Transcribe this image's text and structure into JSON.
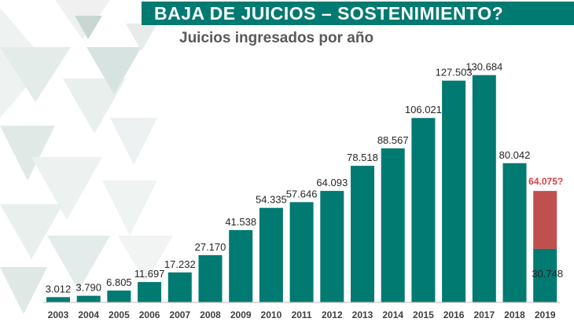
{
  "slide_title": "BAJA DE JUICIOS – SOSTENIMIENTO?",
  "colors": {
    "bar": "#017a72",
    "highlight": "#c0504d",
    "title_bar": "#017a72",
    "question_label": "#e03a3a"
  },
  "chart_data": {
    "type": "bar",
    "title": "Juicios ingresados por año",
    "xlabel": "",
    "ylabel": "",
    "grid": false,
    "legend": "none",
    "categories": [
      "2003",
      "2004",
      "2005",
      "2006",
      "2007",
      "2008",
      "2009",
      "2010",
      "2011",
      "2012",
      "2013",
      "2014",
      "2015",
      "2016",
      "2017",
      "2018",
      "2019"
    ],
    "values": [
      3012,
      3790,
      6805,
      11697,
      17232,
      27170,
      41538,
      54335,
      57646,
      64093,
      78518,
      88567,
      106021,
      127503,
      130684,
      80042,
      30748
    ],
    "labels": [
      "3.012",
      "3.790",
      "6.805",
      "11.697",
      "17.232",
      "27.170",
      "41.538",
      "54.335",
      "57.646",
      "64.093",
      "78.518",
      "88.567",
      "106.021",
      "127.503",
      "130.684",
      "80.042",
      "30.748"
    ],
    "projection": {
      "category": "2019",
      "value": 64075,
      "label": "64.075?"
    },
    "ylim": [
      0,
      140000
    ]
  }
}
